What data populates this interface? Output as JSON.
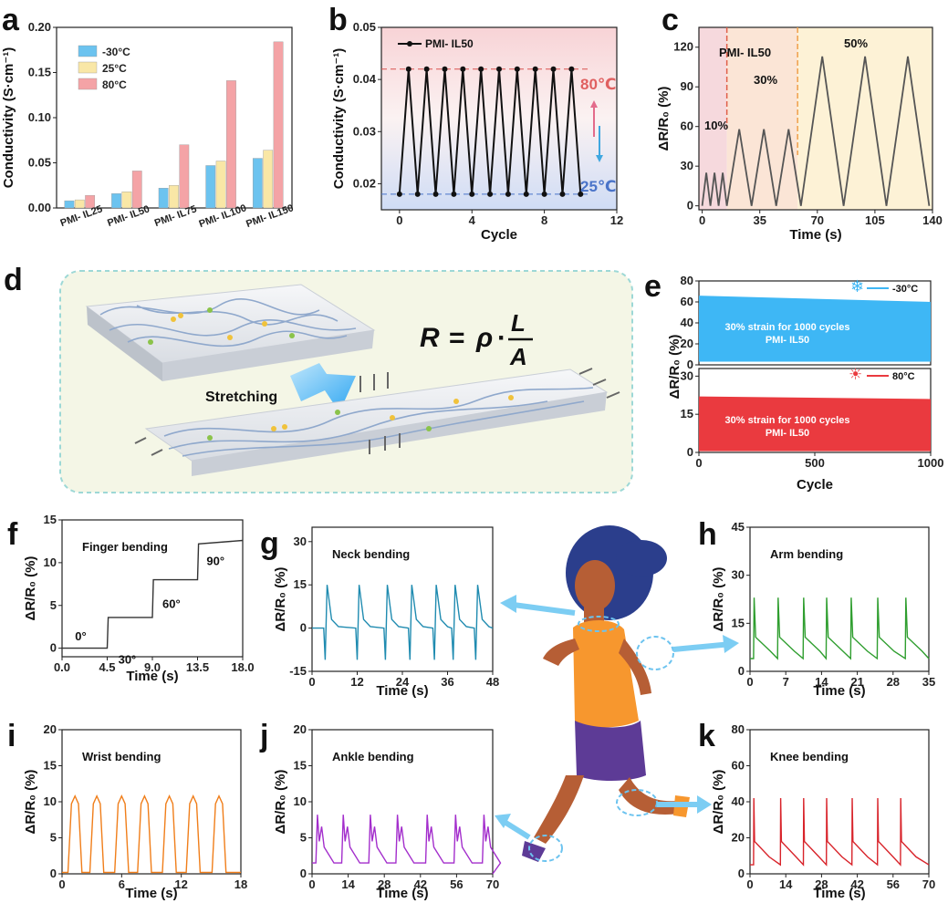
{
  "panels": {
    "a": {
      "label": "a",
      "type": "bar",
      "ylabel": "Conductivity (S·cm⁻¹)",
      "ylim": [
        0,
        0.2
      ],
      "yticks": [
        0,
        0.05,
        0.1,
        0.15,
        0.2
      ],
      "categories": [
        "PMI- IL25",
        "PMI- IL50",
        "PMI- IL75",
        "PMI- IL100",
        "PMI- IL150"
      ],
      "series": [
        {
          "name": "-30°C",
          "color": "#6cc3ef",
          "values": [
            0.008,
            0.016,
            0.022,
            0.047,
            0.055
          ]
        },
        {
          "name": "25°C",
          "color": "#f9e7a6",
          "values": [
            0.009,
            0.018,
            0.025,
            0.052,
            0.064
          ]
        },
        {
          "name": "80°C",
          "color": "#f4a3a6",
          "values": [
            0.014,
            0.041,
            0.07,
            0.141,
            0.184
          ]
        }
      ]
    },
    "b": {
      "label": "b",
      "type": "line",
      "xlabel": "Cycle",
      "ylabel": "Conductivity (S·cm⁻¹)",
      "xlim": [
        -1,
        12
      ],
      "ylim": [
        0.015,
        0.05
      ],
      "xticks": [
        0,
        4,
        8,
        12
      ],
      "yticks": [
        0.02,
        0.03,
        0.04,
        0.05
      ],
      "legend": "PMI- IL50",
      "high_label": "80℃",
      "low_label": "25℃",
      "high": 0.042,
      "low": 0.018,
      "points": 21
    },
    "c": {
      "label": "c",
      "type": "line",
      "xlabel": "Time (s)",
      "ylabel": "ΔR/R₀ (%)",
      "xlim": [
        -2,
        140
      ],
      "ylim": [
        -3,
        135
      ],
      "xticks": [
        0,
        35,
        70,
        105,
        140
      ],
      "yticks": [
        0,
        30,
        60,
        90,
        120
      ],
      "legend": "PMI- IL50",
      "regions": [
        {
          "label": "10%",
          "x0": -2,
          "x1": 15
        },
        {
          "label": "30%",
          "x0": 15,
          "x1": 58
        },
        {
          "label": "50%",
          "x0": 58,
          "x1": 140
        }
      ],
      "segments": [
        {
          "start": 0,
          "period": 5,
          "peak": 25,
          "n": 3
        },
        {
          "start": 15,
          "period": 15,
          "peak": 58,
          "n": 3
        },
        {
          "start": 60,
          "period": 26,
          "peak": 113,
          "n": 3
        }
      ]
    },
    "e": {
      "label": "e",
      "type": "area",
      "xlabel": "Cycle",
      "ylabel": "ΔR/R₀ (%)",
      "xlim": [
        0,
        1000
      ],
      "xticks": [
        0,
        500,
        1000
      ],
      "top": {
        "legend": "-30°C",
        "ylim": [
          0,
          80
        ],
        "yticks": [
          0,
          20,
          40,
          60,
          80
        ],
        "upper_start": 66,
        "upper_end": 60,
        "lower": 3,
        "color": "#3eb7f5",
        "text1": "30% strain for 1000 cycles",
        "text2": "PMI- IL50"
      },
      "bottom": {
        "legend": "80°C",
        "ylim": [
          0,
          33
        ],
        "yticks": [
          0,
          15,
          30
        ],
        "upper_start": 22,
        "upper_end": 21,
        "lower": 0.5,
        "color": "#ea3a3f",
        "text1": "30% strain for 1000 cycles",
        "text2": "PMI- IL50"
      }
    },
    "f": {
      "label": "f",
      "type": "line",
      "title": "Finger bending",
      "xlabel": "Time (s)",
      "ylabel": "ΔR/R₀ (%)",
      "xlim": [
        0,
        18
      ],
      "ylim": [
        -1,
        15
      ],
      "xticks": [
        0,
        4.5,
        9,
        13.5,
        18
      ],
      "xtick_labels": [
        "0.0",
        "4.5",
        "9.0",
        "13.5",
        "18.0"
      ],
      "yticks": [
        0,
        5,
        10,
        15
      ],
      "color": "#333333",
      "steps": [
        {
          "x": 0,
          "y": 0
        },
        {
          "x": 4.5,
          "y": 0
        },
        {
          "x": 4.6,
          "y": 3.6
        },
        {
          "x": 9,
          "y": 3.6
        },
        {
          "x": 9.1,
          "y": 8
        },
        {
          "x": 13.5,
          "y": 8
        },
        {
          "x": 13.6,
          "y": 12.2
        },
        {
          "x": 18,
          "y": 12.6
        }
      ],
      "annotations": [
        "0°",
        "30°",
        "60°",
        "90°"
      ]
    },
    "g": {
      "label": "g",
      "type": "line",
      "title": "Neck bending",
      "xlabel": "Time (s)",
      "ylabel": "ΔR/R₀ (%)",
      "xlim": [
        0,
        48
      ],
      "ylim": [
        -15,
        35
      ],
      "xticks": [
        0,
        12,
        24,
        36,
        48
      ],
      "yticks": [
        -15,
        0,
        15,
        30
      ],
      "color": "#1f8bb0",
      "peaks": [
        4,
        12.5,
        20,
        26.5,
        33,
        38,
        44
      ],
      "pos": 15,
      "neg": -11
    },
    "h": {
      "label": "h",
      "type": "line",
      "title": "Arm bending",
      "xlabel": "Time (s)",
      "ylabel": "ΔR/R₀ (%)",
      "xlim": [
        0,
        35
      ],
      "ylim": [
        0,
        45
      ],
      "xticks": [
        0,
        7,
        14,
        21,
        28,
        35
      ],
      "yticks": [
        0,
        15,
        30,
        45
      ],
      "color": "#2f9e2f",
      "peaks": [
        0.8,
        5.5,
        10.5,
        15,
        19.8,
        25,
        30.5
      ],
      "peak": 23,
      "base": 4
    },
    "i": {
      "label": "i",
      "type": "line",
      "title": "Wrist bending",
      "xlabel": "Time (s)",
      "ylabel": "ΔR/R₀ (%)",
      "xlim": [
        0,
        18
      ],
      "ylim": [
        0,
        20
      ],
      "xticks": [
        0,
        6,
        12,
        18
      ],
      "yticks": [
        0,
        5,
        10,
        15,
        20
      ],
      "color": "#f07e1a",
      "peaks": [
        1.3,
        3.5,
        6,
        8.3,
        10.8,
        13.2,
        15.8
      ],
      "peak": 10.8
    },
    "j": {
      "label": "j",
      "type": "line",
      "title": "Ankle bending",
      "xlabel": "Time (s)",
      "ylabel": "ΔR/R₀ (%)",
      "xlim": [
        0,
        70
      ],
      "ylim": [
        0,
        20
      ],
      "xticks": [
        0,
        14,
        28,
        42,
        56,
        70
      ],
      "yticks": [
        0,
        5,
        10,
        15,
        20
      ],
      "color": "#a32ecc",
      "peaks": [
        1.5,
        11.5,
        22,
        32.5,
        44,
        55,
        66
      ],
      "peak": 8.2,
      "base": 1.5
    },
    "k": {
      "label": "k",
      "type": "line",
      "title": "Knee bending",
      "xlabel": "Time (s)",
      "ylabel": "ΔR/R₀ (%)",
      "xlim": [
        0,
        70
      ],
      "ylim": [
        0,
        80
      ],
      "xticks": [
        0,
        14,
        28,
        42,
        56,
        70
      ],
      "yticks": [
        0,
        20,
        40,
        60,
        80
      ],
      "color": "#d8232a",
      "peaks": [
        1.5,
        12,
        21,
        30,
        40,
        50,
        59
      ],
      "peak": 42,
      "base": 5
    }
  },
  "schematic": {
    "label": "d",
    "equation_R": "R",
    "equation_eq": "=",
    "equation_rho": "ρ",
    "equation_dot": "·",
    "equation_L": "L",
    "equation_A": "A",
    "arrow_label": "Stretching"
  }
}
